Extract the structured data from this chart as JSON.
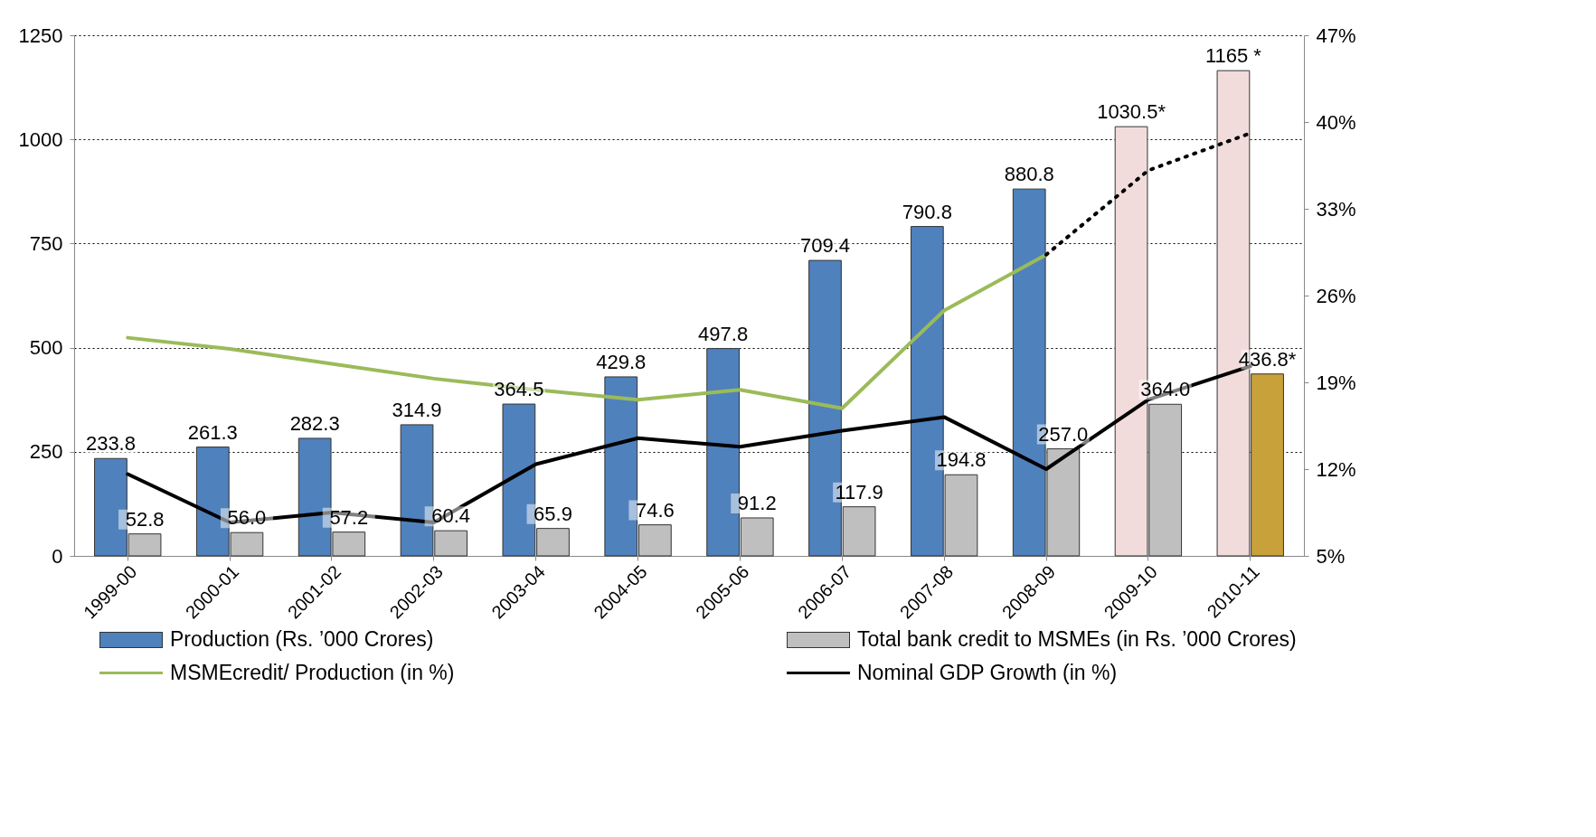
{
  "chart_data": {
    "type": "bar",
    "categories": [
      "1999-00",
      "2000-01",
      "2001-02",
      "2002-03",
      "2003-04",
      "2004-05",
      "2005-06",
      "2006-07",
      "2007-08",
      "2008-09",
      "2009-10",
      "2010-11"
    ],
    "ylim": [
      0,
      1250
    ],
    "yticks": [
      0,
      250,
      500,
      750,
      1000,
      1250
    ],
    "y2lim": [
      5,
      47
    ],
    "y2ticks": [
      {
        "value": 5,
        "label": "5%"
      },
      {
        "value": 12,
        "label": "12%"
      },
      {
        "value": 19,
        "label": "19%"
      },
      {
        "value": 26,
        "label": "26%"
      },
      {
        "value": 33,
        "label": "33%"
      },
      {
        "value": 40,
        "label": "40%"
      },
      {
        "value": 47,
        "label": "47%"
      }
    ],
    "grid": "y",
    "legend": "bottom",
    "series": [
      {
        "name": "Production (Rs. ’000 Crores)",
        "type": "bar",
        "color": "#4f81bd",
        "colors": [
          "#4f81bd",
          "#4f81bd",
          "#4f81bd",
          "#4f81bd",
          "#4f81bd",
          "#4f81bd",
          "#4f81bd",
          "#4f81bd",
          "#4f81bd",
          "#4f81bd",
          "#f2dcdb",
          "#f2dcdb"
        ],
        "values": [
          233.8,
          261.3,
          282.3,
          314.9,
          364.5,
          429.8,
          497.8,
          709.4,
          790.8,
          880.8,
          1030.5,
          1165
        ],
        "value_labels": [
          "233.8",
          "261.3",
          "282.3",
          "314.9",
          "364.5",
          "429.8",
          "497.8",
          "709.4",
          "790.8",
          "880.8",
          "1030.5*",
          "1165 *"
        ]
      },
      {
        "name": "Total bank credit to MSMEs (in Rs. ’000 Crores)",
        "type": "bar",
        "color": "#bfbfbf",
        "colors": [
          "#bfbfbf",
          "#bfbfbf",
          "#bfbfbf",
          "#bfbfbf",
          "#bfbfbf",
          "#bfbfbf",
          "#bfbfbf",
          "#bfbfbf",
          "#bfbfbf",
          "#bfbfbf",
          "#bfbfbf",
          "#c9a13b"
        ],
        "values": [
          52.8,
          56.0,
          57.2,
          60.4,
          65.9,
          74.6,
          91.2,
          117.9,
          194.8,
          257.0,
          364.0,
          436.8
        ],
        "value_labels": [
          "52.8",
          "56.0",
          "57.2",
          "60.4",
          "65.9",
          "74.6",
          "91.2",
          "117.9",
          "194.8",
          "257.0",
          "364.0",
          "436.8*"
        ]
      },
      {
        "name": "MSMEcredit/ Production (in %)",
        "type": "line",
        "axis": "y2",
        "color": "#9bbb59",
        "values": [
          22.6,
          21.7,
          20.5,
          19.3,
          18.4,
          17.6,
          18.4,
          16.9,
          24.8,
          29.3,
          null,
          null
        ]
      },
      {
        "name": "Nominal GDP Growth (in %)",
        "type": "line",
        "axis": "y2",
        "color": "#000000",
        "values": [
          11.6,
          7.7,
          8.5,
          7.7,
          12.4,
          14.5,
          13.8,
          15.1,
          16.2,
          12.0,
          17.6,
          20.3
        ]
      },
      {
        "type": "line",
        "axis": "y2",
        "color": "#000000",
        "line_style": "dotted",
        "values": [
          null,
          null,
          null,
          null,
          null,
          null,
          null,
          null,
          null,
          29.3,
          36.1,
          39.1
        ]
      }
    ]
  }
}
